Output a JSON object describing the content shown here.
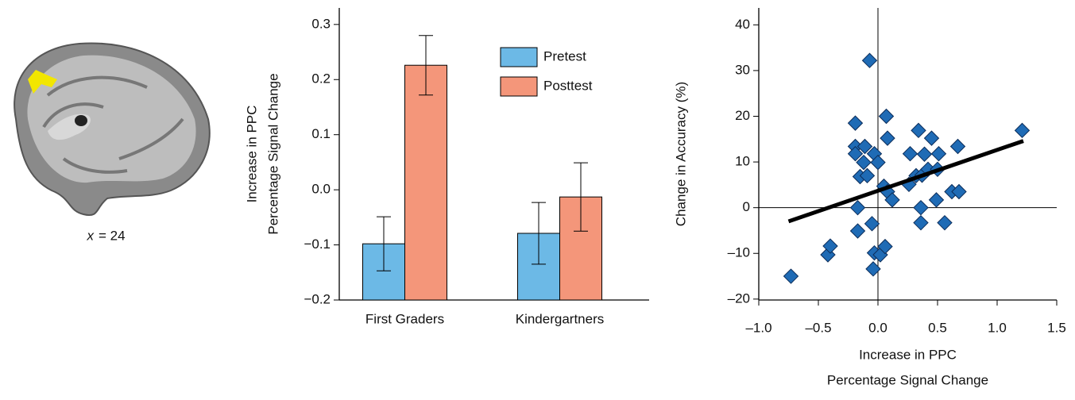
{
  "brain_image": {
    "caption_variable": "x",
    "caption_value": "= 24"
  },
  "chart_data": [
    {
      "type": "bar",
      "categories": [
        "First Graders",
        "Kindergartners"
      ],
      "series": [
        {
          "name": "Pretest",
          "color": "#6cb9e6",
          "values": [
            -0.098,
            -0.079
          ],
          "errors": [
            0.049,
            0.056
          ]
        },
        {
          "name": "Posttest",
          "color": "#f4967a",
          "values": [
            0.226,
            -0.013
          ],
          "errors": [
            0.054,
            0.062
          ]
        }
      ],
      "ylabel": [
        "Increase in PPC",
        "Percentage Signal Change"
      ],
      "ylim": [
        -0.2,
        0.33
      ],
      "yticks": [
        {
          "value": -0.2,
          "label": "−0.2"
        },
        {
          "value": -0.1,
          "label": "−0.1"
        },
        {
          "value": 0,
          "label": "0.0"
        },
        0.1,
        0.2,
        0.3
      ],
      "legend": "upper right"
    },
    {
      "type": "scatter",
      "color": "#1f6bb5",
      "x": [
        -0.73,
        -0.42,
        -0.4,
        -0.07,
        -0.19,
        -0.11,
        -0.19,
        -0.19,
        -0.12,
        -0.15,
        -0.09,
        -0.03,
        0.0,
        -0.17,
        -0.17,
        -0.05,
        -0.03,
        0.02,
        0.06,
        -0.04,
        0.07,
        0.08,
        0.05,
        0.08,
        0.12,
        0.27,
        0.26,
        0.32,
        0.34,
        0.37,
        0.39,
        0.45,
        0.42,
        0.5,
        0.51,
        0.36,
        0.36,
        0.49,
        0.56,
        0.62,
        0.68,
        0.67,
        1.21
      ],
      "values": [
        -15.0,
        -10.3,
        -8.4,
        32.2,
        13.4,
        13.4,
        18.5,
        11.8,
        9.9,
        6.8,
        7.0,
        11.8,
        9.9,
        0,
        -5.1,
        -3.5,
        -9.9,
        -10.3,
        -8.5,
        -13.4,
        20.0,
        15.2,
        4.7,
        3.5,
        1.7,
        11.8,
        5.1,
        7.0,
        16.9,
        7.1,
        11.7,
        15.2,
        8.4,
        8.4,
        11.8,
        0,
        -3.3,
        1.7,
        -3.3,
        3.5,
        3.5,
        13.4,
        16.9
      ],
      "fit_line": {
        "x": [
          -0.75,
          1.22
        ],
        "values": [
          -3,
          14.6
        ]
      },
      "zero_lines": true,
      "xlabel": [
        "Increase in PPC",
        "Percentage Signal Change"
      ],
      "ylabel": [
        "Change in Accuracy (%)"
      ],
      "xlim": [
        -1.0,
        1.5
      ],
      "xticks": [
        {
          "value": -1.0,
          "label": "–1.0"
        },
        {
          "value": -0.5,
          "label": "–0.5"
        },
        {
          "value": 0,
          "label": "0.0"
        },
        0.5,
        {
          "value": 1.0,
          "label": "1.0"
        },
        1.5
      ],
      "ylim": [
        -20.2,
        43.7
      ],
      "yticks": [
        {
          "value": -20,
          "label": "–20"
        },
        {
          "value": -10,
          "label": "–10"
        },
        0,
        10,
        20,
        30,
        40
      ]
    }
  ]
}
